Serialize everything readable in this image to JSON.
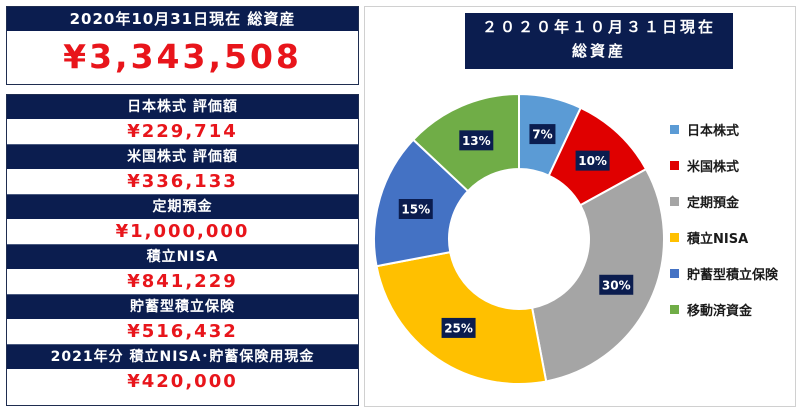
{
  "total": {
    "label": "2020年10月31日現在 総資産",
    "value": "¥3,343,508"
  },
  "items": [
    {
      "label": "日本株式 評価額",
      "value": "¥229,714"
    },
    {
      "label": "米国株式 評価額",
      "value": "¥336,133"
    },
    {
      "label": "定期預金",
      "value": "¥1,000,000"
    },
    {
      "label": "積立NISA",
      "value": "¥841,229"
    },
    {
      "label": "貯蓄型積立保険",
      "value": "¥516,432"
    },
    {
      "label": "2021年分 積立NISA･貯蓄保険用現金",
      "value": "¥420,000"
    }
  ],
  "chart_data": {
    "type": "pie",
    "title_line1": "２０２０年１０月３１日現在",
    "title_line2": "総資産",
    "categories": [
      "日本株式",
      "米国株式",
      "定期預金",
      "積立NISA",
      "貯蓄型積立保険",
      "移動済資金"
    ],
    "values": [
      7,
      10,
      30,
      25,
      15,
      13
    ],
    "labels": [
      "7%",
      "10%",
      "30%",
      "25%",
      "15%",
      "13%"
    ],
    "colors": [
      "#5b9bd5",
      "#e00000",
      "#a5a5a5",
      "#ffc000",
      "#4472c4",
      "#70ad47"
    ],
    "legend_position": "right"
  }
}
